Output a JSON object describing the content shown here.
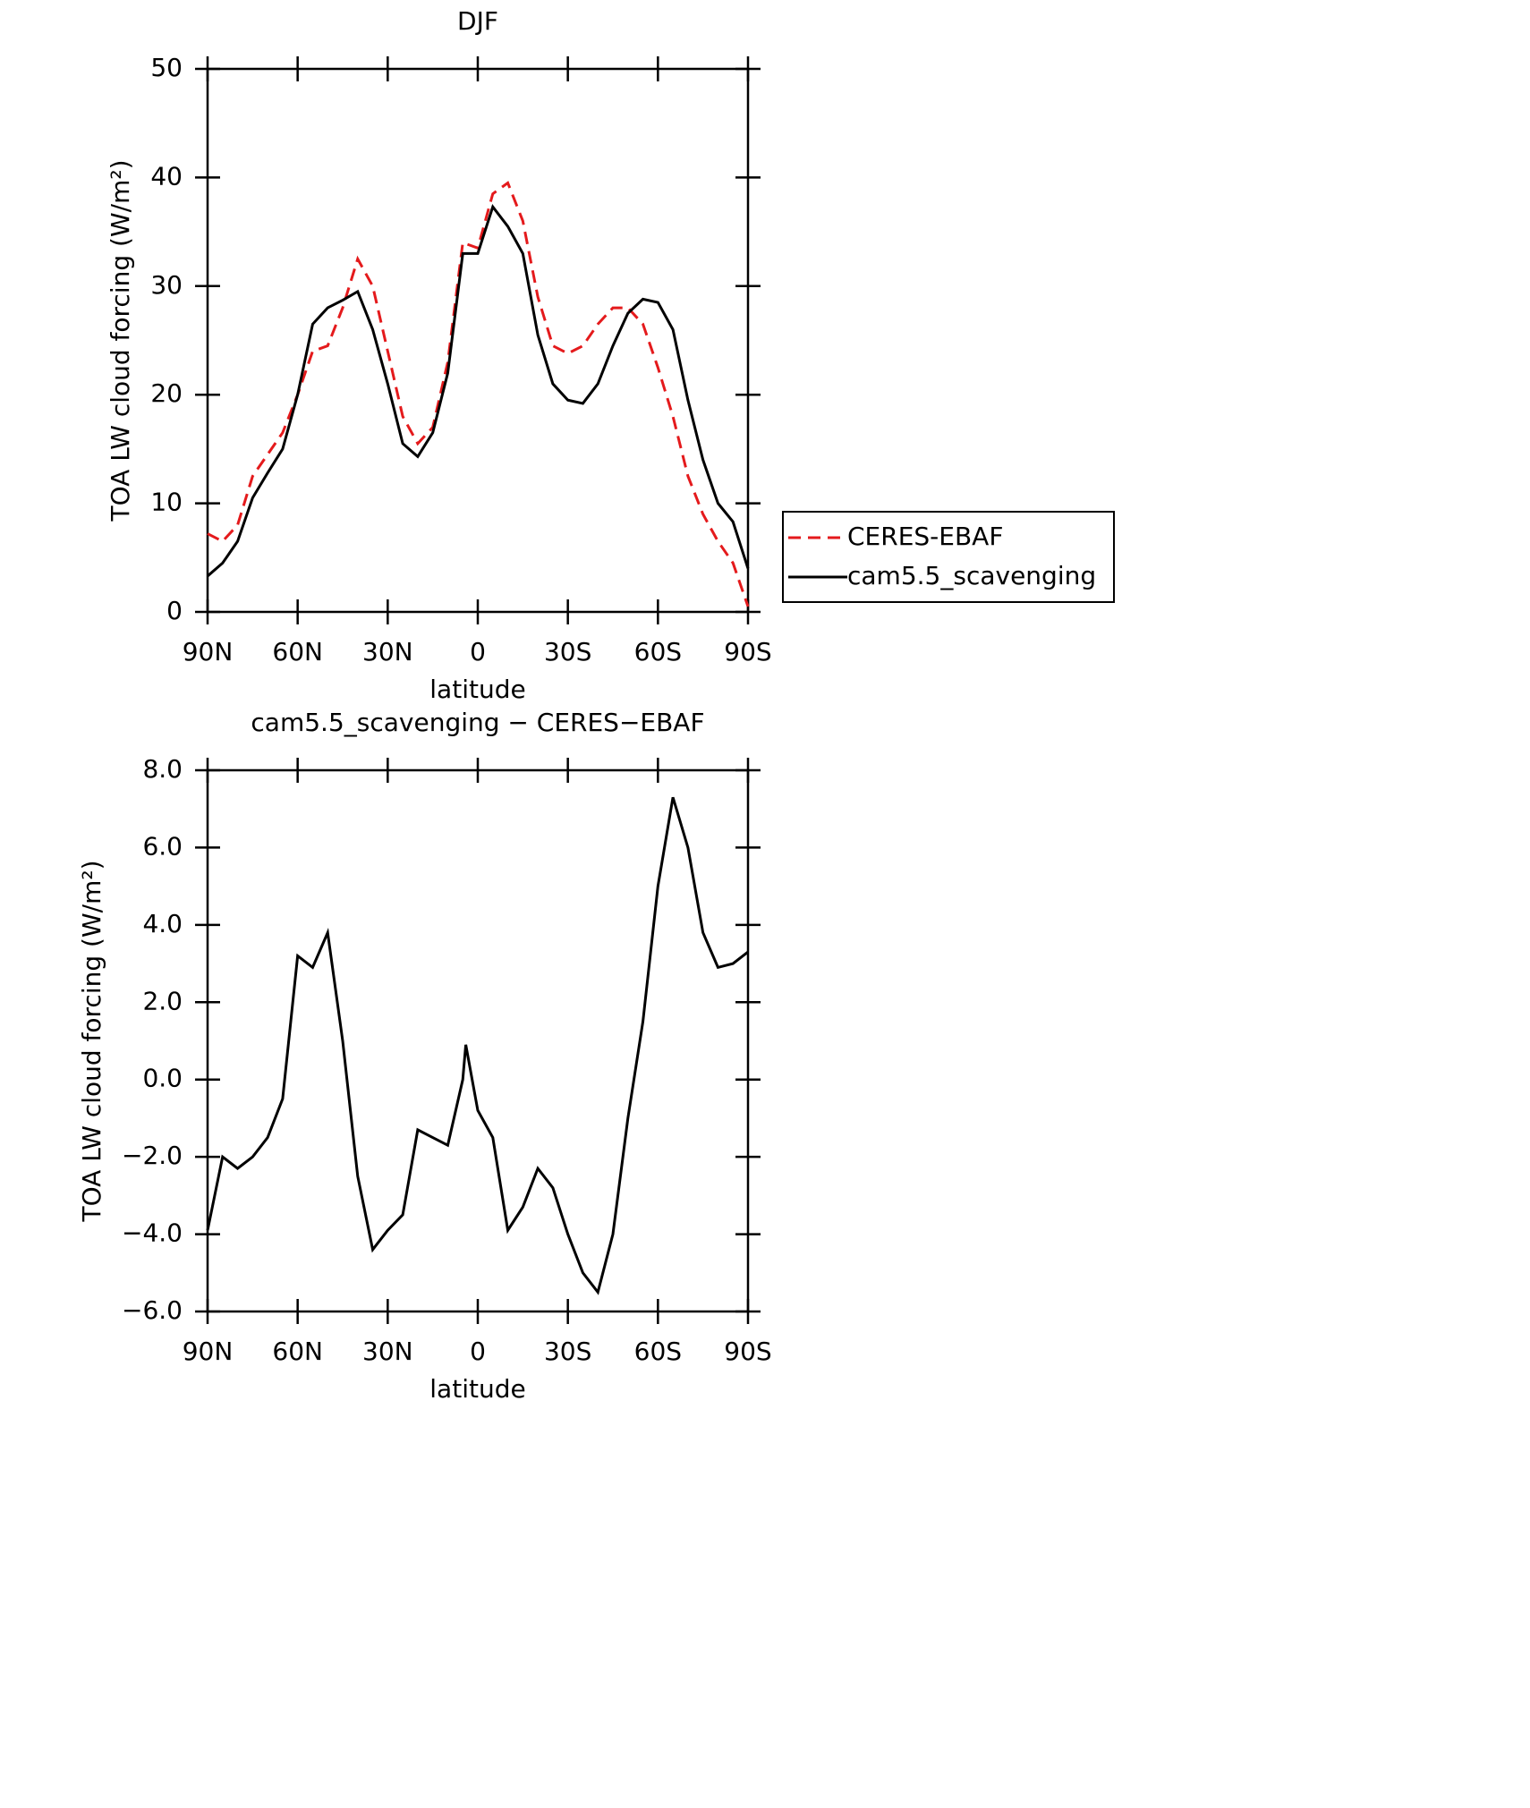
{
  "chart_data": [
    {
      "type": "line",
      "title": "DJF",
      "xlabel": "latitude",
      "ylabel": "TOA LW cloud forcing (W/m²)",
      "x": [
        90,
        85,
        80,
        75,
        70,
        65,
        60,
        55,
        50,
        45,
        40,
        35,
        30,
        25,
        20,
        15,
        10,
        5,
        0,
        -5,
        -10,
        -15,
        -20,
        -25,
        -30,
        -35,
        -40,
        -45,
        -50,
        -55,
        -60,
        -65,
        -70,
        -75,
        -80,
        -85,
        -90
      ],
      "series": [
        {
          "name": "CERES-EBAF",
          "color": "#e41a1c",
          "dash": true,
          "values": [
            7.2,
            6.5,
            8,
            12.5,
            14.5,
            16.5,
            20,
            24,
            24.5,
            28,
            32.5,
            30,
            24,
            18,
            15.5,
            17,
            23,
            34,
            33.5,
            38.5,
            39.5,
            36,
            29,
            24.5,
            23.8,
            24.5,
            26.5,
            28,
            28,
            26.5,
            22.5,
            18,
            12.5,
            9,
            6.5,
            4.5,
            0.5
          ]
        },
        {
          "name": "cam5.5_scavenging",
          "color": "#000000",
          "dash": false,
          "values": [
            3.3,
            4.5,
            6.5,
            10.5,
            12.8,
            15,
            20,
            26.5,
            28,
            28.7,
            29.5,
            26,
            21,
            15.5,
            14.3,
            16.5,
            22,
            33,
            33,
            37.3,
            35.5,
            33,
            25.5,
            21,
            19.5,
            19.2,
            21,
            24.5,
            27.5,
            28.8,
            28.5,
            26,
            19.5,
            14,
            10,
            8.3,
            4
          ]
        }
      ],
      "xlim": [
        90,
        -90
      ],
      "xticks": [
        {
          "value": 90,
          "label": "90N"
        },
        {
          "value": 60,
          "label": "60N"
        },
        {
          "value": 30,
          "label": "30N"
        },
        0,
        {
          "value": -30,
          "label": "30S"
        },
        {
          "value": -60,
          "label": "60S"
        },
        {
          "value": -90,
          "label": "90S"
        }
      ],
      "ylim": [
        0,
        50
      ],
      "yticks": [
        0,
        10,
        20,
        30,
        40,
        50
      ],
      "legend": "right"
    },
    {
      "type": "line",
      "title": "cam5.5_scavenging − CERES−EBAF",
      "xlabel": "latitude",
      "ylabel": "TOA LW cloud forcing (W/m²)",
      "x": [
        90,
        85,
        80,
        75,
        70,
        65,
        60,
        55,
        50,
        45,
        40,
        35,
        30,
        25,
        20,
        15,
        10,
        5,
        4,
        0,
        -5,
        -10,
        -15,
        -20,
        -25,
        -30,
        -35,
        -40,
        -45,
        -50,
        -55,
        -60,
        -65,
        -70,
        -75,
        -80,
        -85,
        -90
      ],
      "series": [
        {
          "name": null,
          "color": "#000000",
          "dash": false,
          "values": [
            -3.9,
            -2.0,
            -2.3,
            -2.0,
            -1.5,
            -0.5,
            3.2,
            2.9,
            3.8,
            1.0,
            -2.5,
            -4.4,
            -3.9,
            -3.5,
            -1.3,
            -1.5,
            -1.7,
            0.0,
            0.9,
            -0.8,
            -1.5,
            -3.9,
            -3.3,
            -2.3,
            -2.8,
            -4.0,
            -5.0,
            -5.5,
            -4.0,
            -1.0,
            1.5,
            5.0,
            7.3,
            6.0,
            3.8,
            2.9,
            3.0,
            3.3
          ]
        }
      ],
      "xlim": [
        90,
        -90
      ],
      "xticks": [
        {
          "value": 90,
          "label": "90N"
        },
        {
          "value": 60,
          "label": "60N"
        },
        {
          "value": 30,
          "label": "30N"
        },
        0,
        {
          "value": -30,
          "label": "30S"
        },
        {
          "value": -60,
          "label": "60S"
        },
        {
          "value": -90,
          "label": "90S"
        }
      ],
      "ylim": [
        -6,
        8
      ],
      "yticks": [
        {
          "value": -6,
          "label": "−6.0"
        },
        {
          "value": -4,
          "label": "−4.0"
        },
        {
          "value": -2,
          "label": "−2.0"
        },
        {
          "value": 0,
          "label": "0.0"
        },
        {
          "value": 2,
          "label": "2.0"
        },
        {
          "value": 4,
          "label": "4.0"
        },
        {
          "value": 6,
          "label": "6.0"
        },
        {
          "value": 8,
          "label": "8.0"
        }
      ]
    }
  ]
}
